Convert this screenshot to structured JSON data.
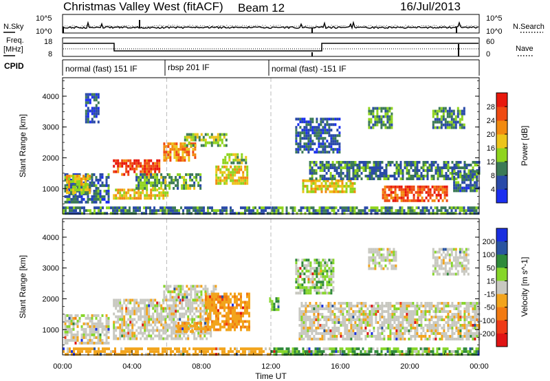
{
  "header": {
    "title": "Christmas Valley West (fitACF)",
    "beam": "Beam 12",
    "date": "16/Jul/2013"
  },
  "status_panels": {
    "nsky": {
      "label": "N.Sky",
      "ticks": [
        "10^5",
        "10^0"
      ],
      "right_label": "N.Search",
      "right_ticks": [
        "10^5",
        "10^0"
      ]
    },
    "freq": {
      "label_line1": "Freq.",
      "label_line2": "[MHz]",
      "ticks": [
        "18",
        "8"
      ],
      "right_label": "Nave",
      "right_ticks": [
        "60",
        "0"
      ]
    },
    "cpid": {
      "label": "CPID",
      "modes": [
        {
          "text": "normal (fast) 151 IF",
          "start_hour": 0,
          "end_hour": 6
        },
        {
          "text": "rbsp 201 IF",
          "start_hour": 6,
          "end_hour": 12
        },
        {
          "text": "normal (fast) -151 IF",
          "start_hour": 12,
          "end_hour": 24
        }
      ]
    }
  },
  "chart_data": [
    {
      "type": "heatmap",
      "name": "power",
      "ylabel": "Slant Range [km]",
      "yticks": [
        1000,
        2000,
        3000,
        4000
      ],
      "ylim": [
        180,
        4600
      ],
      "xlim": [
        0,
        24
      ],
      "colorbar": {
        "label": "Power [dB]",
        "ticks": [
          "4",
          "8",
          "12",
          "16",
          "20",
          "24",
          "28"
        ],
        "colors": [
          "#1b2ff0",
          "#2a4aa8",
          "#3c7a56",
          "#8fd41e",
          "#ecc41a",
          "#f28a10",
          "#ef4a12",
          "#e8180c"
        ]
      },
      "regions": [
        {
          "t0": 0.1,
          "t1": 2.6,
          "r0": 550,
          "r1": 1500,
          "v": 8
        },
        {
          "t0": 0.2,
          "t1": 1.6,
          "r0": 900,
          "r1": 1450,
          "v": 17
        },
        {
          "t0": 2.9,
          "t1": 6.0,
          "r0": 700,
          "r1": 1000,
          "v": 18
        },
        {
          "t0": 2.9,
          "t1": 5.6,
          "r0": 1500,
          "r1": 1950,
          "v": 27
        },
        {
          "t0": 5.8,
          "t1": 7.6,
          "r0": 1900,
          "r1": 2500,
          "v": 22
        },
        {
          "t0": 7.0,
          "t1": 9.4,
          "r0": 2400,
          "r1": 2800,
          "v": 14
        },
        {
          "t0": 4.2,
          "t1": 8.0,
          "r0": 1000,
          "r1": 1500,
          "v": 12
        },
        {
          "t0": 8.8,
          "t1": 10.6,
          "r0": 1200,
          "r1": 1750,
          "v": 17
        },
        {
          "t0": 9.2,
          "t1": 10.6,
          "r0": 1800,
          "r1": 2150,
          "v": 15
        },
        {
          "t0": 1.3,
          "t1": 2.1,
          "r0": 3200,
          "r1": 4100,
          "v": 6
        },
        {
          "t0": 11.9,
          "t1": 24.0,
          "r0": 200,
          "r1": 420,
          "v": 10
        },
        {
          "t0": 0.0,
          "t1": 11.9,
          "r0": 200,
          "r1": 420,
          "v": 9
        },
        {
          "t0": 13.8,
          "t1": 16.8,
          "r0": 900,
          "r1": 1300,
          "v": 18
        },
        {
          "t0": 14.2,
          "t1": 24.0,
          "r0": 1350,
          "r1": 1900,
          "v": 9
        },
        {
          "t0": 18.4,
          "t1": 22.2,
          "r0": 600,
          "r1": 1100,
          "v": 26
        },
        {
          "t0": 17.6,
          "t1": 19.0,
          "r0": 3000,
          "r1": 3650,
          "v": 11
        },
        {
          "t0": 21.3,
          "t1": 23.2,
          "r0": 3000,
          "r1": 3650,
          "v": 10
        },
        {
          "t0": 13.4,
          "t1": 16.0,
          "r0": 2200,
          "r1": 3300,
          "v": 7
        },
        {
          "t0": 22.5,
          "t1": 24.0,
          "r0": 900,
          "r1": 1600,
          "v": 8
        }
      ]
    },
    {
      "type": "heatmap",
      "name": "velocity",
      "ylabel": "Slant Range [km]",
      "xlabel": "Time UT",
      "yticks": [
        1000,
        2000,
        3000,
        4000
      ],
      "ylim": [
        180,
        4600
      ],
      "xlim": [
        0,
        24
      ],
      "xticks": [
        "00:00",
        "04:00",
        "08:00",
        "12:00",
        "16:00",
        "20:00",
        "00:00"
      ],
      "colorbar": {
        "label": "Velocity [m s^-1]",
        "ticks": [
          "200",
          "100",
          "50",
          "15",
          "-15",
          "-50",
          "-100",
          "-200"
        ],
        "colors": [
          "#1a2fe0",
          "#2a54a0",
          "#2f8a3a",
          "#86d62a",
          "#c8c8c0",
          "#f2a41c",
          "#f27a12",
          "#ef3a16",
          "#e01414"
        ]
      },
      "regions": [
        {
          "t0": 0.1,
          "t1": 2.6,
          "r0": 550,
          "r1": 1500,
          "v": 0
        },
        {
          "t0": 2.9,
          "t1": 8.5,
          "r0": 700,
          "r1": 2000,
          "v": 0
        },
        {
          "t0": 5.8,
          "t1": 8.8,
          "r0": 1950,
          "r1": 2450,
          "v": 0
        },
        {
          "t0": 8.2,
          "t1": 10.8,
          "r0": 1000,
          "r1": 2200,
          "v": -40
        },
        {
          "t0": 6.5,
          "t1": 8.2,
          "r0": 950,
          "r1": 1250,
          "v": -40
        },
        {
          "t0": 0.0,
          "t1": 11.9,
          "r0": 200,
          "r1": 420,
          "v": -30
        },
        {
          "t0": 11.9,
          "t1": 24.0,
          "r0": 200,
          "r1": 420,
          "v": 30
        },
        {
          "t0": 13.6,
          "t1": 24.0,
          "r0": 700,
          "r1": 1900,
          "v": 0
        },
        {
          "t0": 13.4,
          "t1": 15.6,
          "r0": 2200,
          "r1": 3300,
          "v": 20
        },
        {
          "t0": 17.6,
          "t1": 19.2,
          "r0": 3000,
          "r1": 3650,
          "v": 0
        },
        {
          "t0": 21.3,
          "t1": 23.4,
          "r0": 2800,
          "r1": 3650,
          "v": 0
        },
        {
          "t0": 11.9,
          "t1": 12.4,
          "r0": 1650,
          "r1": 2050,
          "v": 30
        }
      ]
    }
  ]
}
